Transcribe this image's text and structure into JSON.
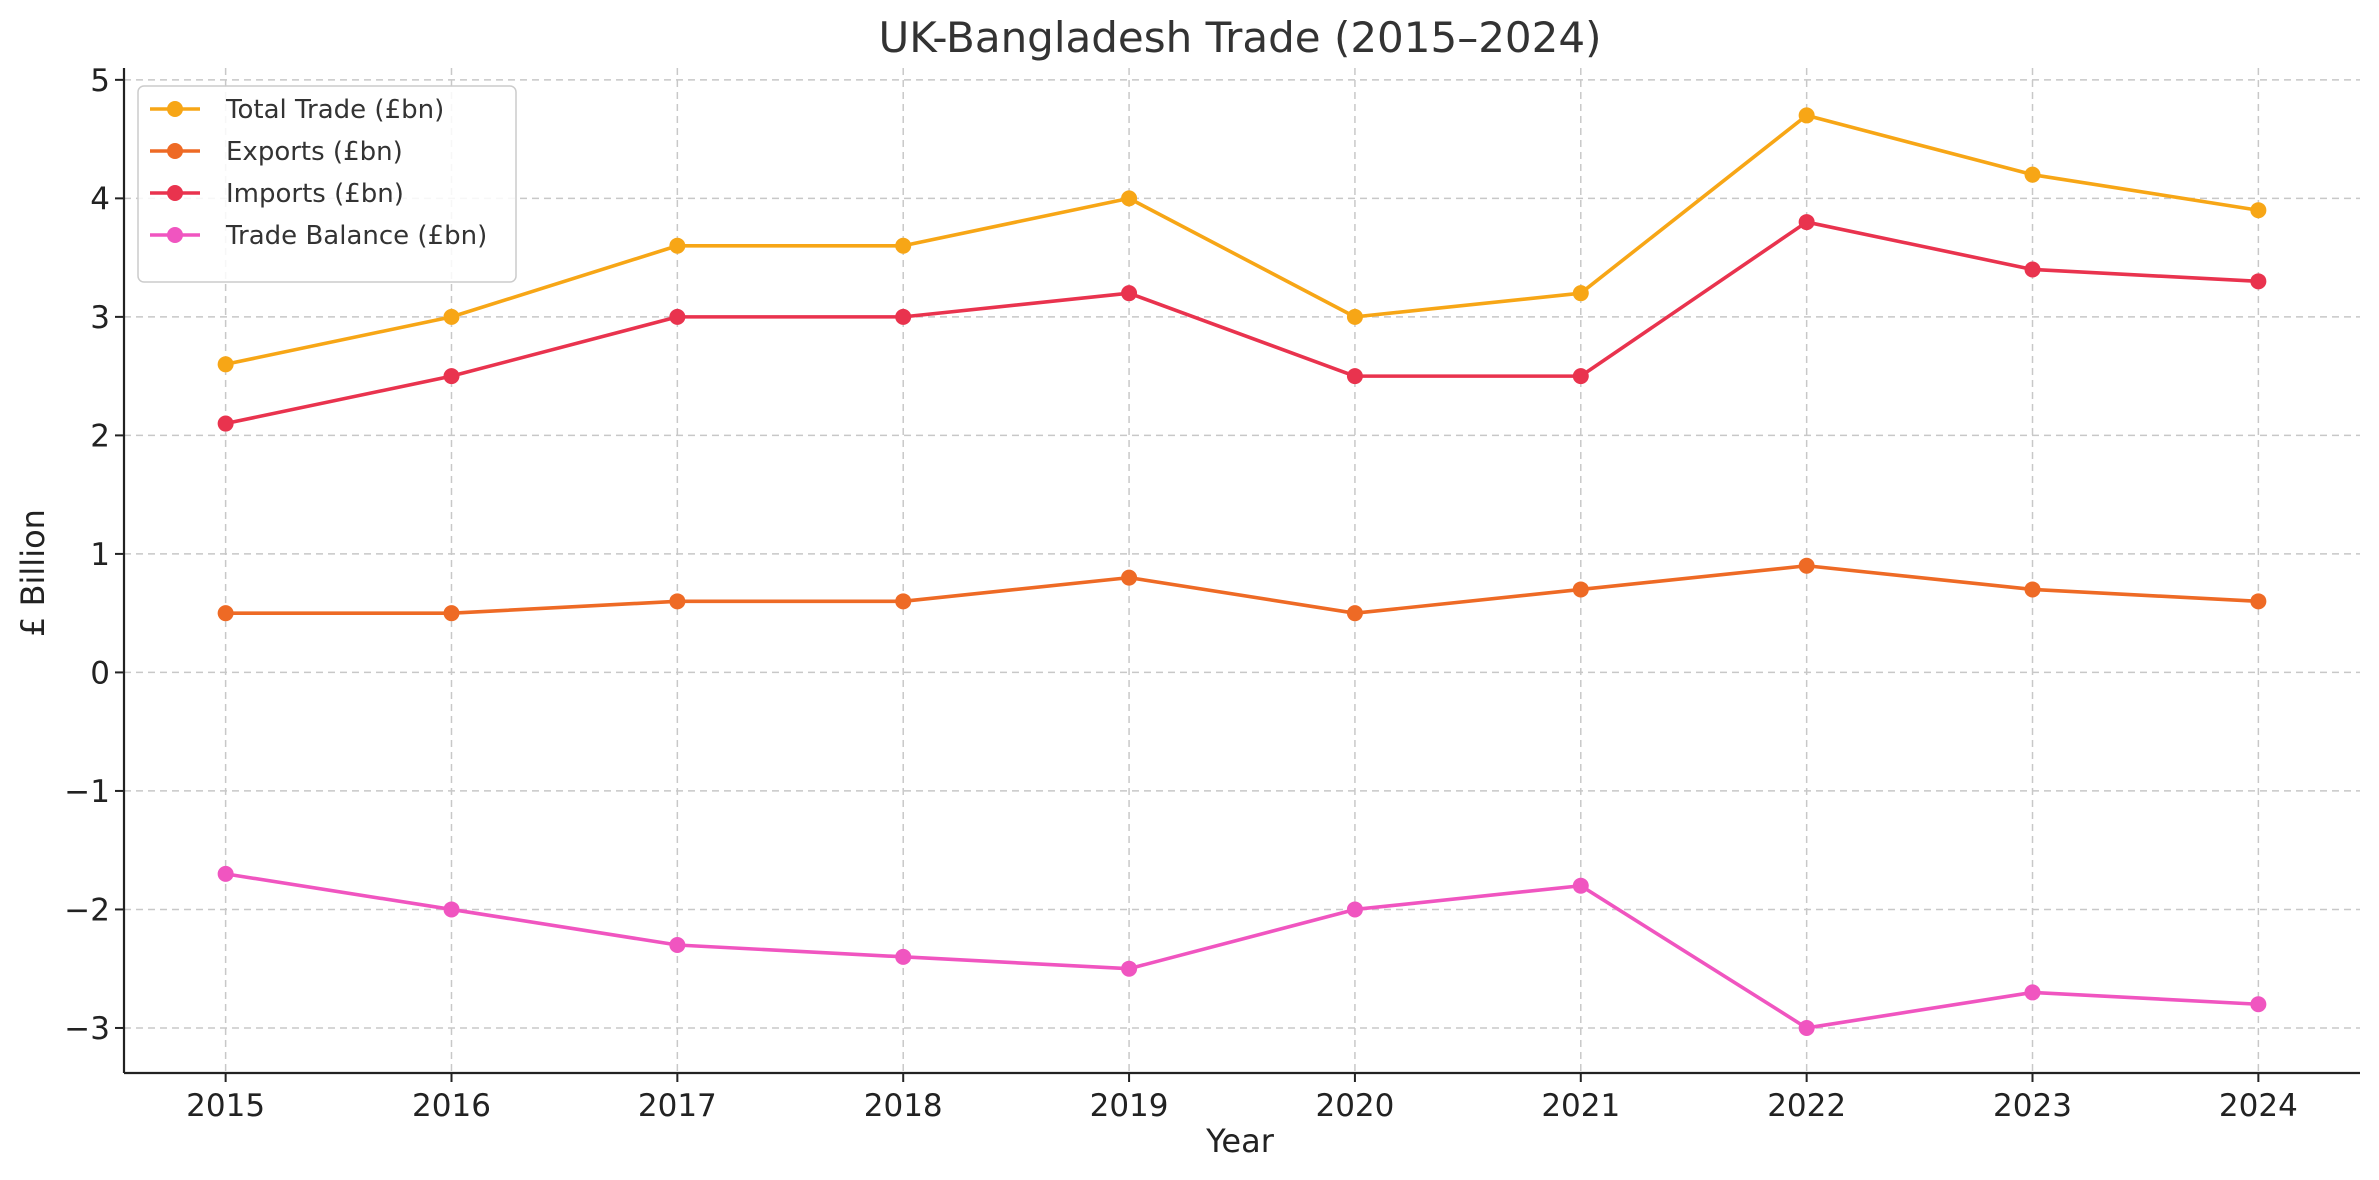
{
  "chart_data": {
    "type": "line",
    "title": "UK-Bangladesh Trade (2015–2024)",
    "xlabel": "Year",
    "ylabel": "£ Billion",
    "x": [
      2015,
      2016,
      2017,
      2018,
      2019,
      2020,
      2021,
      2022,
      2023,
      2024
    ],
    "ylim": [
      -3.38,
      5.1
    ],
    "xlim": [
      2014.55,
      2024.45
    ],
    "yticks": [
      -3,
      -2,
      -1,
      0,
      1,
      2,
      3,
      4,
      5
    ],
    "grid": true,
    "legend_position": "top-left",
    "series": [
      {
        "name": "Total Trade (£bn)",
        "color": "#F7A616",
        "values": [
          2.6,
          3.0,
          3.6,
          3.6,
          4.0,
          3.0,
          3.2,
          4.7,
          4.2,
          3.9
        ]
      },
      {
        "name": "Exports (£bn)",
        "color": "#EE6A25",
        "values": [
          0.5,
          0.5,
          0.6,
          0.6,
          0.8,
          0.5,
          0.7,
          0.9,
          0.7,
          0.6
        ]
      },
      {
        "name": "Imports (£bn)",
        "color": "#E9334E",
        "values": [
          2.1,
          2.5,
          3.0,
          3.0,
          3.2,
          2.5,
          2.5,
          3.8,
          3.4,
          3.3
        ]
      },
      {
        "name": "Trade Balance (£bn)",
        "color": "#F055C0",
        "values": [
          -1.7,
          -2.0,
          -2.3,
          -2.4,
          -2.5,
          -2.0,
          -1.8,
          -3.0,
          -2.7,
          -2.8
        ]
      }
    ]
  }
}
